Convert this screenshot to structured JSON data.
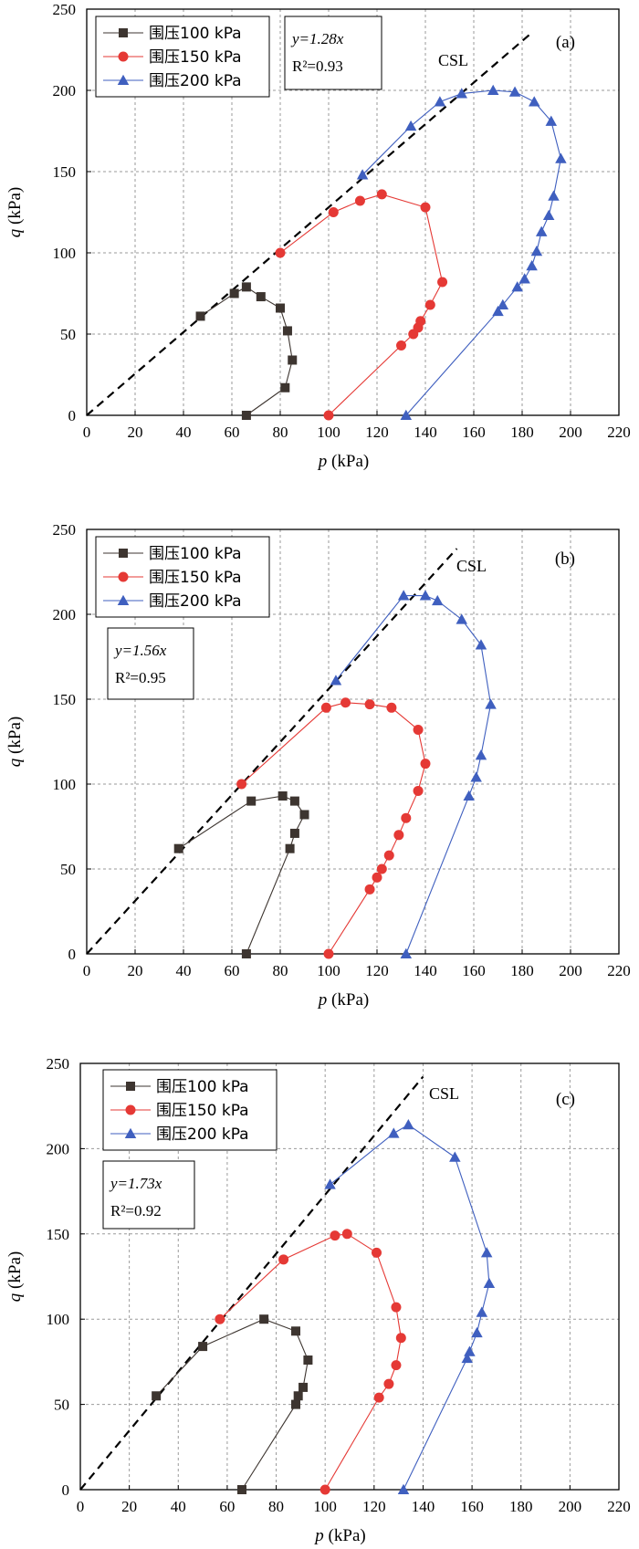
{
  "chart_data": [
    {
      "type": "line",
      "panel_label": "(a)",
      "xlabel": "p",
      "xlabel_unit": "(kPa)",
      "ylabel": "q",
      "ylabel_unit": "(kPa)",
      "xlim": [
        0,
        220
      ],
      "ylim": [
        0,
        250
      ],
      "xticks": [
        0,
        20,
        40,
        60,
        80,
        100,
        120,
        140,
        160,
        180,
        200,
        220
      ],
      "yticks": [
        0,
        50,
        100,
        150,
        200,
        250
      ],
      "grid": true,
      "legend_position": "top-left",
      "csl_label": "CSL",
      "fit_equation": "y=1.28x",
      "fit_r2": "R²=0.93",
      "fit_slope": 1.28,
      "fit_x_max": 184,
      "series": [
        {
          "name": "围压100 kPa",
          "color": "#3d3530",
          "marker": "square",
          "points": [
            [
              66,
              0
            ],
            [
              82,
              17
            ],
            [
              85,
              34
            ],
            [
              83,
              52
            ],
            [
              80,
              66
            ],
            [
              72,
              73
            ],
            [
              66,
              79
            ],
            [
              61,
              75
            ],
            [
              47,
              61
            ]
          ]
        },
        {
          "name": "围压150 kPa",
          "color": "#e53935",
          "marker": "circle",
          "points": [
            [
              100,
              0
            ],
            [
              130,
              43
            ],
            [
              135,
              50
            ],
            [
              137,
              54
            ],
            [
              138,
              58
            ],
            [
              142,
              68
            ],
            [
              147,
              82
            ],
            [
              140,
              128
            ],
            [
              122,
              136
            ],
            [
              113,
              132
            ],
            [
              102,
              125
            ],
            [
              80,
              100
            ]
          ]
        },
        {
          "name": "围压200 kPa",
          "color": "#3f5fbf",
          "marker": "triangle",
          "points": [
            [
              132,
              0
            ],
            [
              170,
              64
            ],
            [
              172,
              68
            ],
            [
              178,
              79
            ],
            [
              181,
              84
            ],
            [
              184,
              92
            ],
            [
              186,
              101
            ],
            [
              188,
              113
            ],
            [
              191,
              123
            ],
            [
              193,
              135
            ],
            [
              196,
              158
            ],
            [
              192,
              181
            ],
            [
              185,
              193
            ],
            [
              177,
              199
            ],
            [
              168,
              200
            ],
            [
              155,
              198
            ],
            [
              146,
              193
            ],
            [
              134,
              178
            ],
            [
              114,
              148
            ]
          ]
        }
      ]
    },
    {
      "type": "line",
      "panel_label": "(b)",
      "xlabel": "p",
      "xlabel_unit": "(kPa)",
      "ylabel": "q",
      "ylabel_unit": "(kPa)",
      "xlim": [
        0,
        220
      ],
      "ylim": [
        0,
        250
      ],
      "xticks": [
        0,
        20,
        40,
        60,
        80,
        100,
        120,
        140,
        160,
        180,
        200,
        220
      ],
      "yticks": [
        0,
        50,
        100,
        150,
        200,
        250
      ],
      "grid": true,
      "legend_position": "top-left",
      "csl_label": "CSL",
      "fit_equation": "y=1.56x",
      "fit_r2": "R²=0.95",
      "fit_slope": 1.56,
      "fit_x_max": 153,
      "series": [
        {
          "name": "围压100 kPa",
          "color": "#3d3530",
          "marker": "square",
          "points": [
            [
              66,
              0
            ],
            [
              84,
              62
            ],
            [
              86,
              71
            ],
            [
              90,
              82
            ],
            [
              86,
              90
            ],
            [
              81,
              93
            ],
            [
              68,
              90
            ],
            [
              38,
              62
            ]
          ]
        },
        {
          "name": "围压150 kPa",
          "color": "#e53935",
          "marker": "circle",
          "points": [
            [
              100,
              0
            ],
            [
              117,
              38
            ],
            [
              120,
              45
            ],
            [
              122,
              50
            ],
            [
              125,
              58
            ],
            [
              129,
              70
            ],
            [
              132,
              80
            ],
            [
              137,
              96
            ],
            [
              140,
              112
            ],
            [
              137,
              132
            ],
            [
              126,
              145
            ],
            [
              117,
              147
            ],
            [
              107,
              148
            ],
            [
              99,
              145
            ],
            [
              64,
              100
            ]
          ]
        },
        {
          "name": "围压200 kPa",
          "color": "#3f5fbf",
          "marker": "triangle",
          "points": [
            [
              132,
              0
            ],
            [
              158,
              93
            ],
            [
              161,
              104
            ],
            [
              163,
              117
            ],
            [
              167,
              147
            ],
            [
              163,
              182
            ],
            [
              155,
              197
            ],
            [
              145,
              208
            ],
            [
              140,
              211
            ],
            [
              131,
              211
            ],
            [
              103,
              161
            ]
          ]
        }
      ]
    },
    {
      "type": "line",
      "panel_label": "(c)",
      "xlabel": "p",
      "xlabel_unit": "(kPa)",
      "ylabel": "q",
      "ylabel_unit": "(kPa)",
      "xlim": [
        0,
        220
      ],
      "ylim": [
        0,
        250
      ],
      "xticks": [
        0,
        20,
        40,
        60,
        80,
        100,
        120,
        140,
        160,
        180,
        200,
        220
      ],
      "yticks": [
        0,
        50,
        100,
        150,
        200,
        250
      ],
      "grid": true,
      "legend_position": "top-left",
      "csl_label": "CSL",
      "fit_equation": "y=1.73x",
      "fit_r2": "R²=0.92",
      "fit_slope": 1.73,
      "fit_x_max": 140,
      "series": [
        {
          "name": "围压100 kPa",
          "color": "#3d3530",
          "marker": "square",
          "points": [
            [
              66,
              0
            ],
            [
              88,
              50
            ],
            [
              89,
              55
            ],
            [
              91,
              60
            ],
            [
              93,
              76
            ],
            [
              88,
              93
            ],
            [
              75,
              100
            ],
            [
              50,
              84
            ],
            [
              31,
              55
            ]
          ]
        },
        {
          "name": "围压150 kPa",
          "color": "#e53935",
          "marker": "circle",
          "points": [
            [
              100,
              0
            ],
            [
              122,
              54
            ],
            [
              126,
              62
            ],
            [
              129,
              73
            ],
            [
              131,
              89
            ],
            [
              129,
              107
            ],
            [
              121,
              139
            ],
            [
              109,
              150
            ],
            [
              104,
              149
            ],
            [
              83,
              135
            ],
            [
              57,
              100
            ]
          ]
        },
        {
          "name": "围压200 kPa",
          "color": "#3f5fbf",
          "marker": "triangle",
          "points": [
            [
              132,
              0
            ],
            [
              158,
              77
            ],
            [
              159,
              81
            ],
            [
              162,
              92
            ],
            [
              164,
              104
            ],
            [
              167,
              121
            ],
            [
              166,
              139
            ],
            [
              153,
              195
            ],
            [
              134,
              214
            ],
            [
              128,
              209
            ],
            [
              102,
              179
            ]
          ]
        }
      ]
    }
  ]
}
